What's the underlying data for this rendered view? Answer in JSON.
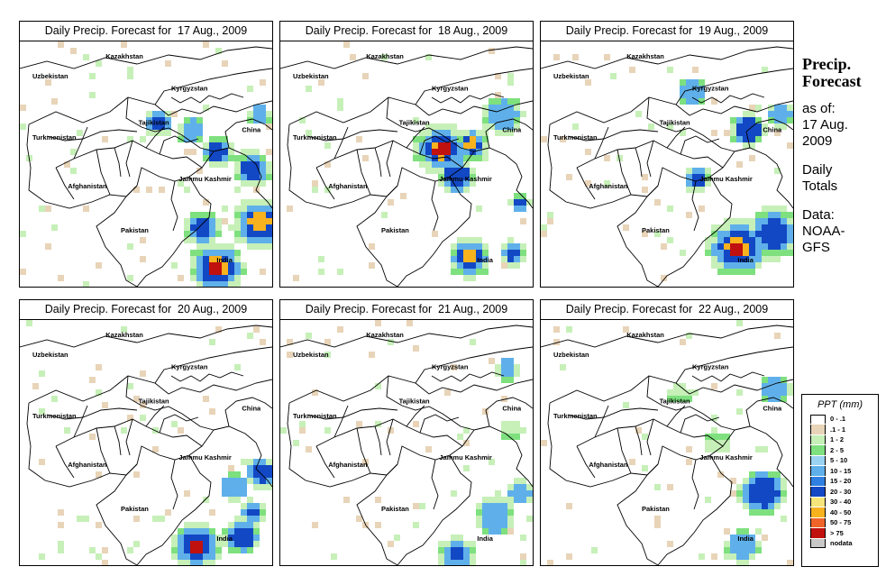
{
  "panels": [
    {
      "title": "Daily Precip. Forecast for  17 Aug., 2009",
      "rain": [
        [
          0.78,
          0.92,
          0.09,
          [
            0,
            0.28,
            0.55,
            0.8,
            0.95
          ]
        ],
        [
          0.95,
          0.74,
          0.09,
          [
            0,
            0.3,
            0.55,
            0.8
          ]
        ],
        [
          0.72,
          0.76,
          0.07,
          [
            0.1,
            0.5,
            0.75
          ]
        ],
        [
          0.78,
          0.45,
          0.06,
          [
            0.15,
            0.5,
            0.7
          ]
        ],
        [
          0.92,
          0.52,
          0.07,
          [
            0.1,
            0.45,
            0.65
          ]
        ],
        [
          0.55,
          0.33,
          0.05,
          [
            0.1,
            0.4,
            0.6
          ]
        ],
        [
          0.68,
          0.36,
          0.05,
          [
            0.1,
            0.4
          ]
        ],
        [
          0.95,
          0.3,
          0.04,
          [
            0.1,
            0.35
          ]
        ]
      ]
    },
    {
      "title": "Daily Precip. Forecast for  18 Aug., 2009",
      "rain": [
        [
          0.64,
          0.44,
          0.09,
          [
            0,
            0.35,
            0.6,
            0.8,
            0.92
          ]
        ],
        [
          0.76,
          0.42,
          0.07,
          [
            0.2,
            0.5,
            0.75,
            0.9
          ]
        ],
        [
          0.75,
          0.88,
          0.07,
          [
            0,
            0.35,
            0.6,
            0.8
          ]
        ],
        [
          0.92,
          0.86,
          0.05,
          [
            0.15,
            0.5,
            0.7
          ]
        ],
        [
          0.7,
          0.55,
          0.07,
          [
            0.1,
            0.45,
            0.6
          ]
        ],
        [
          0.88,
          0.3,
          0.07,
          [
            0.05,
            0.4
          ]
        ],
        [
          0.95,
          0.66,
          0.04,
          [
            0.2,
            0.5,
            0.7
          ]
        ]
      ]
    },
    {
      "title": "Daily Precip. Forecast for  19 Aug., 2009",
      "rain": [
        [
          0.78,
          0.84,
          0.1,
          [
            0,
            0.3,
            0.55,
            0.8,
            0.92
          ]
        ],
        [
          0.92,
          0.78,
          0.09,
          [
            0,
            0.35,
            0.6
          ]
        ],
        [
          0.62,
          0.56,
          0.05,
          [
            0.1,
            0.45,
            0.75
          ]
        ],
        [
          0.82,
          0.36,
          0.06,
          [
            0.05,
            0.3,
            0.5
          ]
        ],
        [
          0.95,
          0.3,
          0.05,
          [
            0.1,
            0.4
          ]
        ],
        [
          0.6,
          0.2,
          0.05,
          [
            0.05,
            0.3
          ]
        ]
      ]
    },
    {
      "title": "Daily Precip. Forecast for  20 Aug., 2009",
      "rain": [
        [
          0.7,
          0.92,
          0.08,
          [
            0,
            0.3,
            0.55,
            0.8,
            0.92
          ]
        ],
        [
          0.88,
          0.88,
          0.07,
          [
            0.1,
            0.4,
            0.6
          ]
        ],
        [
          0.96,
          0.62,
          0.06,
          [
            0.1,
            0.4,
            0.6
          ]
        ],
        [
          0.85,
          0.68,
          0.05,
          [
            0.05,
            0.3
          ]
        ],
        [
          0.92,
          0.78,
          0.05,
          [
            0.2,
            0.5,
            0.75
          ]
        ]
      ]
    },
    {
      "title": "Daily Precip. Forecast for  21 Aug., 2009",
      "rain": [
        [
          0.7,
          0.95,
          0.06,
          [
            0,
            0.35,
            0.6
          ]
        ],
        [
          0.85,
          0.8,
          0.07,
          [
            0.05,
            0.35
          ]
        ],
        [
          0.95,
          0.7,
          0.05,
          [
            0.1,
            0.45
          ]
        ],
        [
          0.92,
          0.45,
          0.04,
          [
            0.05
          ]
        ],
        [
          0.9,
          0.2,
          0.04,
          [
            0.05,
            0.3
          ]
        ]
      ]
    },
    {
      "title": "Daily Precip. Forecast for  22 Aug., 2009",
      "rain": [
        [
          0.88,
          0.7,
          0.08,
          [
            0,
            0.3,
            0.5
          ]
        ],
        [
          0.8,
          0.92,
          0.06,
          [
            0.05,
            0.35
          ]
        ],
        [
          0.93,
          0.28,
          0.05,
          [
            0.05,
            0.3
          ]
        ],
        [
          0.7,
          0.5,
          0.04,
          [
            0.05
          ]
        ],
        [
          0.55,
          0.3,
          0.04,
          [
            0.05
          ]
        ]
      ]
    }
  ],
  "map_labels": [
    {
      "key": "kazakhstan",
      "text": "Kazakhstan"
    },
    {
      "key": "uzbekistan",
      "text": "Uzbekistan"
    },
    {
      "key": "kyrgyzstan",
      "text": "Kyrgyzstan"
    },
    {
      "key": "tajikistan",
      "text": "Tajikistan"
    },
    {
      "key": "china",
      "text": "China"
    },
    {
      "key": "turkmenistan",
      "text": "Turkmenistan"
    },
    {
      "key": "jammu_kashmir",
      "text": "Jammu Kashmir"
    },
    {
      "key": "afghanistan",
      "text": "Afghanistan"
    },
    {
      "key": "pakistan",
      "text": "Pakistan"
    },
    {
      "key": "india",
      "text": "India"
    }
  ],
  "side_info": {
    "heading_line1": "Precip.",
    "heading_line2": "Forecast",
    "asof_line1": "as of:",
    "asof_line2": "17 Aug.",
    "asof_line3": "2009",
    "totals_line1": "Daily",
    "totals_line2": "Totals",
    "data_line1": "Data:",
    "data_line2": "NOAA-",
    "data_line3": "GFS"
  },
  "legend": {
    "title": "PPT (mm)",
    "items": [
      {
        "label": "0 - .1",
        "color": "#ffffff"
      },
      {
        "label": ".1 - 1",
        "color": "#e8d4b8"
      },
      {
        "label": "1 - 2",
        "color": "#c6f0b8"
      },
      {
        "label": "2 - 5",
        "color": "#7ee07e"
      },
      {
        "label": "5 - 10",
        "color": "#9ad2f2"
      },
      {
        "label": "10 - 15",
        "color": "#5fb0ea"
      },
      {
        "label": "15 - 20",
        "color": "#2f7fe0"
      },
      {
        "label": "20 - 30",
        "color": "#1248c4"
      },
      {
        "label": "30 - 40",
        "color": "#f5e57a"
      },
      {
        "label": "40 - 50",
        "color": "#f7b21e"
      },
      {
        "label": "50 - 75",
        "color": "#f0642a"
      },
      {
        "label": "> 75",
        "color": "#c0110e"
      },
      {
        "label": "nodata",
        "color": "#c8c8c8"
      }
    ]
  }
}
